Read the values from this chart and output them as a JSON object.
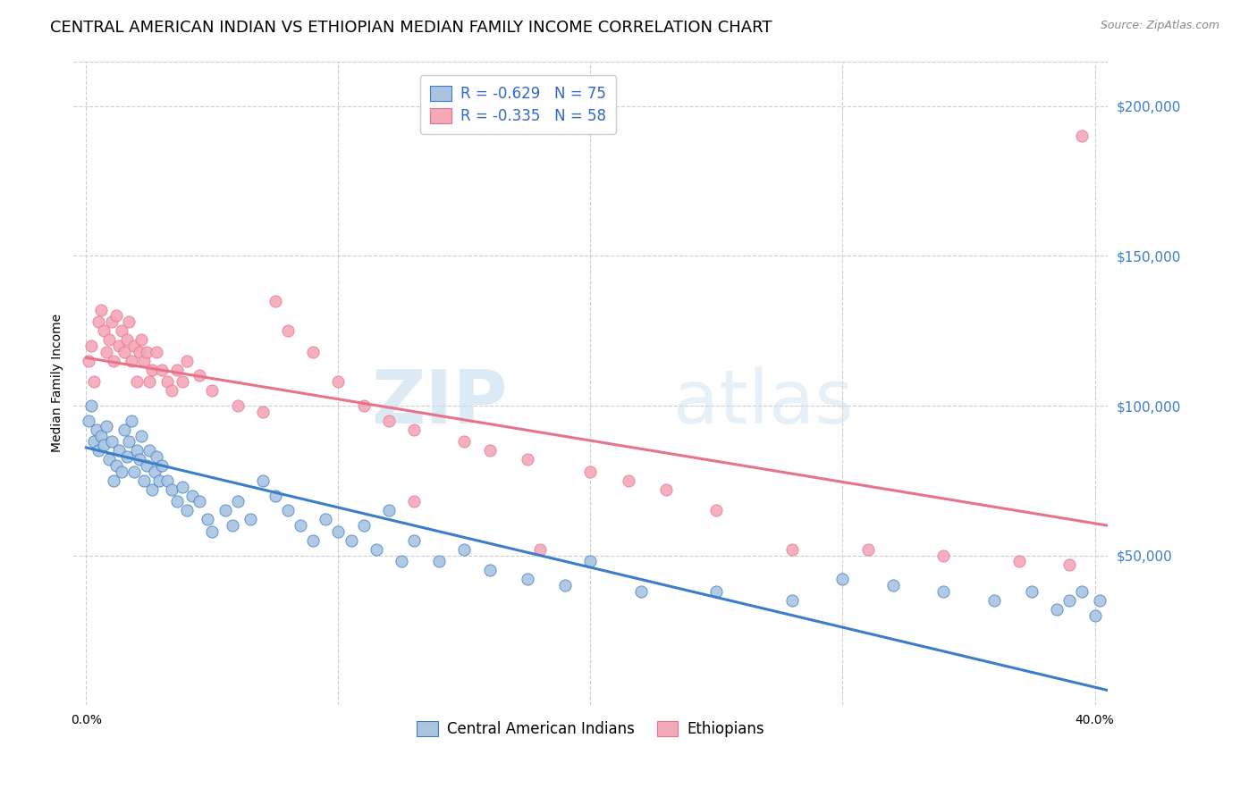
{
  "title": "CENTRAL AMERICAN INDIAN VS ETHIOPIAN MEDIAN FAMILY INCOME CORRELATION CHART",
  "source": "Source: ZipAtlas.com",
  "ylabel": "Median Family Income",
  "xlabel_ticks": [
    "0.0%",
    "",
    "",
    "",
    "40.0%"
  ],
  "xlabel_vals": [
    0.0,
    0.1,
    0.2,
    0.3,
    0.4
  ],
  "ylabel_ticks_right": [
    "$200,000",
    "$150,000",
    "$100,000",
    "$50,000"
  ],
  "ylabel_vals_right": [
    200000,
    150000,
    100000,
    50000
  ],
  "ylim": [
    0,
    215000
  ],
  "xlim": [
    -0.005,
    0.405
  ],
  "blue_color": "#aac4e0",
  "pink_color": "#f4a8b8",
  "line_blue": "#3a7dc9",
  "line_pink": "#e8728a",
  "legend_color": "#3366cc",
  "watermark_zip": "ZIP",
  "watermark_atlas": "atlas",
  "R_blue": -0.629,
  "N_blue": 75,
  "R_pink": -0.335,
  "N_pink": 58,
  "blue_x": [
    0.001,
    0.002,
    0.003,
    0.004,
    0.005,
    0.006,
    0.007,
    0.008,
    0.009,
    0.01,
    0.011,
    0.012,
    0.013,
    0.014,
    0.015,
    0.016,
    0.017,
    0.018,
    0.019,
    0.02,
    0.021,
    0.022,
    0.023,
    0.024,
    0.025,
    0.026,
    0.027,
    0.028,
    0.029,
    0.03,
    0.032,
    0.034,
    0.036,
    0.038,
    0.04,
    0.042,
    0.045,
    0.048,
    0.05,
    0.055,
    0.058,
    0.06,
    0.065,
    0.07,
    0.075,
    0.08,
    0.085,
    0.09,
    0.095,
    0.1,
    0.105,
    0.11,
    0.115,
    0.12,
    0.125,
    0.13,
    0.14,
    0.15,
    0.16,
    0.175,
    0.19,
    0.2,
    0.22,
    0.25,
    0.28,
    0.3,
    0.32,
    0.34,
    0.36,
    0.375,
    0.385,
    0.39,
    0.395,
    0.4,
    0.402
  ],
  "blue_y": [
    95000,
    100000,
    88000,
    92000,
    85000,
    90000,
    87000,
    93000,
    82000,
    88000,
    75000,
    80000,
    85000,
    78000,
    92000,
    83000,
    88000,
    95000,
    78000,
    85000,
    82000,
    90000,
    75000,
    80000,
    85000,
    72000,
    78000,
    83000,
    75000,
    80000,
    75000,
    72000,
    68000,
    73000,
    65000,
    70000,
    68000,
    62000,
    58000,
    65000,
    60000,
    68000,
    62000,
    75000,
    70000,
    65000,
    60000,
    55000,
    62000,
    58000,
    55000,
    60000,
    52000,
    65000,
    48000,
    55000,
    48000,
    52000,
    45000,
    42000,
    40000,
    48000,
    38000,
    38000,
    35000,
    42000,
    40000,
    38000,
    35000,
    38000,
    32000,
    35000,
    38000,
    30000,
    35000
  ],
  "pink_x": [
    0.001,
    0.002,
    0.003,
    0.005,
    0.006,
    0.007,
    0.008,
    0.009,
    0.01,
    0.011,
    0.012,
    0.013,
    0.014,
    0.015,
    0.016,
    0.017,
    0.018,
    0.019,
    0.02,
    0.021,
    0.022,
    0.023,
    0.024,
    0.025,
    0.026,
    0.028,
    0.03,
    0.032,
    0.034,
    0.036,
    0.038,
    0.04,
    0.045,
    0.05,
    0.06,
    0.07,
    0.075,
    0.08,
    0.09,
    0.1,
    0.11,
    0.12,
    0.13,
    0.15,
    0.16,
    0.175,
    0.2,
    0.215,
    0.23,
    0.25,
    0.28,
    0.31,
    0.34,
    0.37,
    0.39,
    0.395,
    0.13,
    0.18
  ],
  "pink_y": [
    115000,
    120000,
    108000,
    128000,
    132000,
    125000,
    118000,
    122000,
    128000,
    115000,
    130000,
    120000,
    125000,
    118000,
    122000,
    128000,
    115000,
    120000,
    108000,
    118000,
    122000,
    115000,
    118000,
    108000,
    112000,
    118000,
    112000,
    108000,
    105000,
    112000,
    108000,
    115000,
    110000,
    105000,
    100000,
    98000,
    135000,
    125000,
    118000,
    108000,
    100000,
    95000,
    92000,
    88000,
    85000,
    82000,
    78000,
    75000,
    72000,
    65000,
    52000,
    52000,
    50000,
    48000,
    47000,
    190000,
    68000,
    52000
  ],
  "blue_line_x": [
    0.0,
    0.405
  ],
  "blue_line_y": [
    86000,
    5000
  ],
  "pink_line_x": [
    0.0,
    0.405
  ],
  "pink_line_y": [
    116000,
    60000
  ],
  "background_color": "#ffffff",
  "grid_color": "#cccccc",
  "title_fontsize": 13,
  "axis_label_fontsize": 10,
  "tick_fontsize": 10,
  "legend_fontsize": 12
}
